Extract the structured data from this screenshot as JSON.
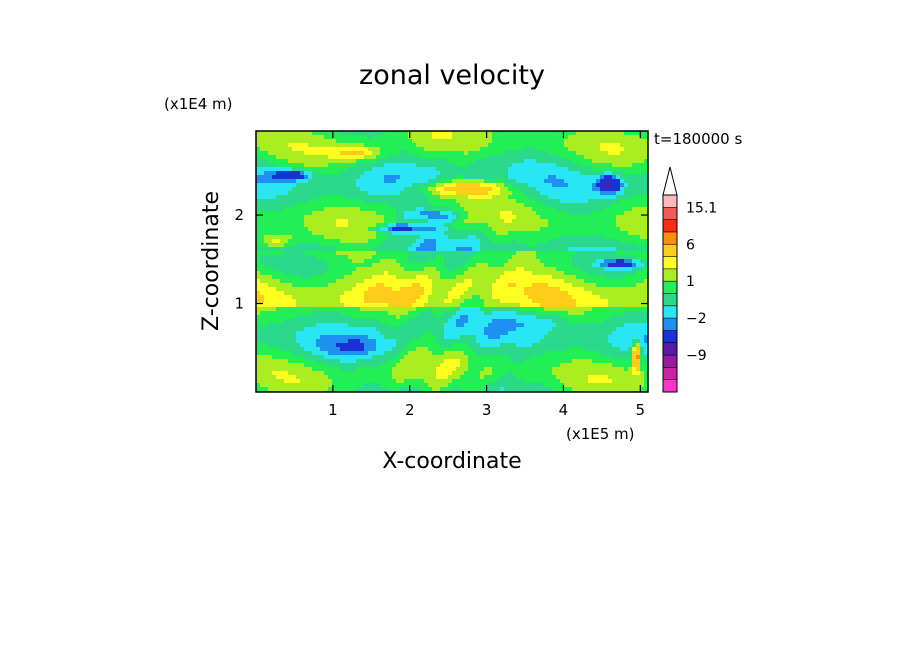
{
  "chart_data": {
    "type": "heatmap",
    "title": "zonal velocity",
    "xlabel": "X-coordinate",
    "ylabel": "Z-coordinate",
    "x_unit": "(x1E5 m)",
    "y_unit": "(x1E4 m)",
    "time_label": "t=180000 s",
    "xlim": [
      0,
      5.1
    ],
    "ylim": [
      0,
      2.95
    ],
    "x_ticks": [
      1,
      2,
      3,
      4,
      5
    ],
    "x_tick_labels": [
      "1",
      "2",
      "3",
      "4",
      "5"
    ],
    "y_ticks": [
      1,
      2
    ],
    "y_tick_labels": [
      "1",
      "2"
    ],
    "colorbar": {
      "levels": [
        -15,
        -12,
        -9,
        -6,
        -3,
        -2,
        -1,
        0,
        1,
        2,
        3,
        6,
        9,
        12,
        15.1
      ],
      "colors": [
        "#ff33cc",
        "#cc22aa",
        "#991ca0",
        "#5a1aa8",
        "#1d2fd6",
        "#1f8ff0",
        "#28e6f4",
        "#2ad98a",
        "#22ee55",
        "#aaee22",
        "#ffff22",
        "#ffcc1a",
        "#ff8c0a",
        "#ff2a14",
        "#f25a5a",
        "#ffb8b8"
      ],
      "labels": [
        {
          "value": 15.1,
          "text": "15.1"
        },
        {
          "value": 6,
          "text": "6"
        },
        {
          "value": 1,
          "text": "1"
        },
        {
          "value": -2,
          "text": "−2"
        },
        {
          "value": -9,
          "text": "−9"
        }
      ],
      "over_arrow_color": "#ffffff"
    },
    "features": [
      {
        "x": 0.45,
        "z": 2.45,
        "value": -5,
        "sx": 0.25,
        "sz": 0.06
      },
      {
        "x": 1.3,
        "z": 2.7,
        "value": 3,
        "sx": 0.3,
        "sz": 0.08
      },
      {
        "x": 2.7,
        "z": 2.3,
        "value": 4,
        "sx": 0.55,
        "sz": 0.08
      },
      {
        "x": 1.9,
        "z": 1.85,
        "value": -4,
        "sx": 0.35,
        "sz": 0.05
      },
      {
        "x": 2.3,
        "z": 2.0,
        "value": -3,
        "sx": 0.4,
        "sz": 0.08
      },
      {
        "x": 4.6,
        "z": 2.35,
        "value": -6,
        "sx": 0.15,
        "sz": 0.1
      },
      {
        "x": 4.75,
        "z": 1.45,
        "value": -4,
        "sx": 0.25,
        "sz": 0.05
      },
      {
        "x": 0.25,
        "z": 1.7,
        "value": 3,
        "sx": 0.25,
        "sz": 0.1
      },
      {
        "x": 1.3,
        "z": 0.5,
        "value": -1.5,
        "sx": 0.45,
        "sz": 0.12
      },
      {
        "x": 3.7,
        "z": 0.8,
        "value": -1.5,
        "sx": 0.45,
        "sz": 0.12
      },
      {
        "x": 4.95,
        "z": 0.4,
        "value": 8,
        "sx": 0.05,
        "sz": 0.15
      }
    ]
  }
}
